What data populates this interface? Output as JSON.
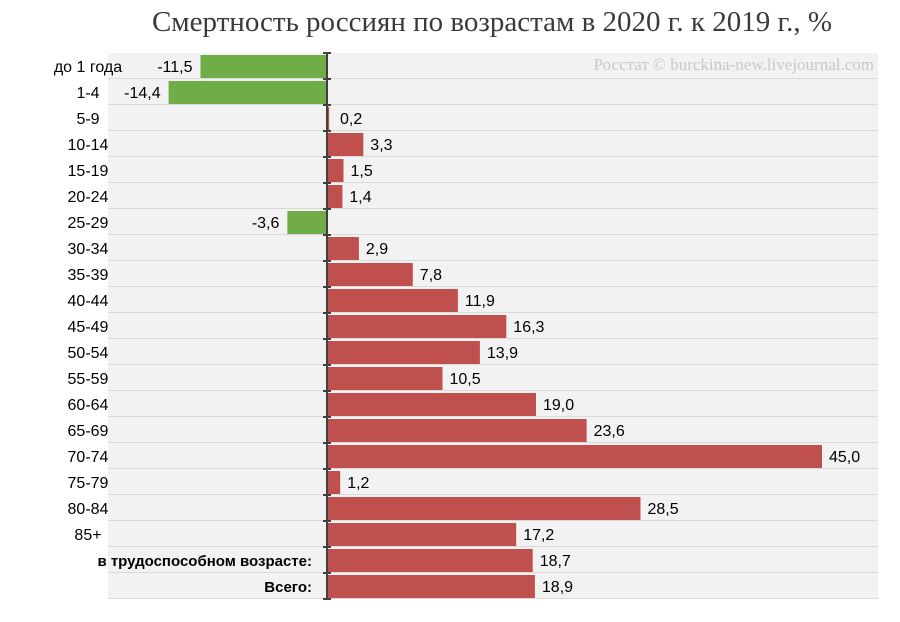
{
  "title": "Смертность россиян по возрастам в 2020 г. к 2019 г., %",
  "watermark": "Росстат © burckina-new.livejournal.com",
  "colors": {
    "positive": "#c0504d",
    "negative": "#70ad47",
    "row_bg": "#f2f2f2",
    "row_border": "#d9d9d9",
    "axis": "#404040"
  },
  "chart_data": {
    "type": "bar",
    "orientation": "horizontal",
    "title": "Смертность россиян по возрастам в 2020 г. к 2019 г., %",
    "categories": [
      "до 1 года",
      "1-4",
      "5-9",
      "10-14",
      "15-19",
      "20-24",
      "25-29",
      "30-34",
      "35-39",
      "40-44",
      "45-49",
      "50-54",
      "55-59",
      "60-64",
      "65-69",
      "70-74",
      "75-79",
      "80-84",
      "85+",
      "в трудоспособном возрасте:",
      "Всего:"
    ],
    "bold_categories": [
      "в трудоспособном возрасте:",
      "Всего:"
    ],
    "values": [
      -11.5,
      -14.4,
      0.2,
      3.3,
      1.5,
      1.4,
      -3.6,
      2.9,
      7.8,
      11.9,
      16.3,
      13.9,
      10.5,
      19.0,
      23.6,
      45.0,
      1.2,
      28.5,
      17.2,
      18.7,
      18.9
    ],
    "value_labels": [
      "-11,5",
      "-14,4",
      "0,2",
      "3,3",
      "1,5",
      "1,4",
      "-3,6",
      "2,9",
      "7,8",
      "11,9",
      "16,3",
      "13,9",
      "10,5",
      "19,0",
      "23,6",
      "45,0",
      "1,2",
      "28,5",
      "17,2",
      "18,7",
      "18,9"
    ],
    "xlim": [
      -20,
      50
    ],
    "xlabel": "",
    "ylabel": "",
    "grid": false,
    "legend": false
  }
}
